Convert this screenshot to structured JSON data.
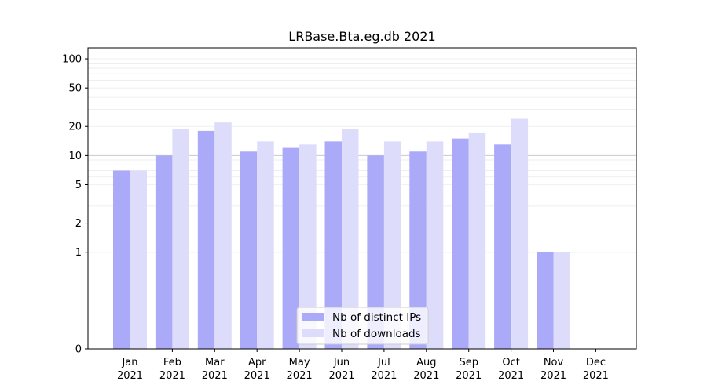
{
  "chart_data": {
    "type": "bar",
    "title": "LRBase.Bta.eg.db 2021",
    "xlabel": "",
    "ylabel": "",
    "y_scale": "symlog",
    "ylim": [
      0,
      130
    ],
    "y_ticks": [
      0,
      1,
      2,
      5,
      10,
      20,
      50,
      100
    ],
    "grid": "horizontal",
    "legend_position": "bottom-center",
    "categories": [
      {
        "month": "Jan",
        "year": "2021"
      },
      {
        "month": "Feb",
        "year": "2021"
      },
      {
        "month": "Mar",
        "year": "2021"
      },
      {
        "month": "Apr",
        "year": "2021"
      },
      {
        "month": "May",
        "year": "2021"
      },
      {
        "month": "Jun",
        "year": "2021"
      },
      {
        "month": "Jul",
        "year": "2021"
      },
      {
        "month": "Aug",
        "year": "2021"
      },
      {
        "month": "Sep",
        "year": "2021"
      },
      {
        "month": "Oct",
        "year": "2021"
      },
      {
        "month": "Nov",
        "year": "2021"
      },
      {
        "month": "Dec",
        "year": "2021"
      }
    ],
    "series": [
      {
        "name": "Nb of distinct IPs",
        "color": "#aaaaf8",
        "values": [
          7,
          10,
          18,
          11,
          12,
          14,
          10,
          11,
          15,
          13,
          1,
          0
        ]
      },
      {
        "name": "Nb of downloads",
        "color": "#ddddfb",
        "values": [
          7,
          19,
          22,
          14,
          13,
          19,
          14,
          14,
          17,
          24,
          1,
          0
        ]
      }
    ]
  }
}
